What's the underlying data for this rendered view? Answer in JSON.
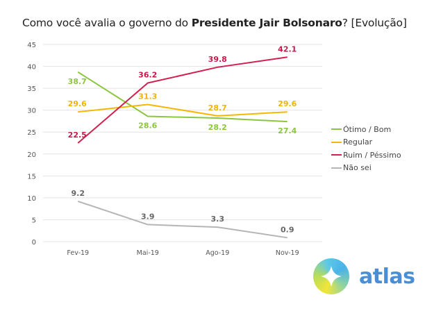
{
  "title": {
    "prefix": "Como você avalia o governo do ",
    "bold": "Presidente Jair Bolsonaro",
    "suffix": "? [Evolução]"
  },
  "logo": {
    "text": "atlas",
    "icon": "atlas-compass-logo-icon"
  },
  "chart_data": {
    "type": "line",
    "title": "Como você avalia o governo do Presidente Jair Bolsonaro? [Evolução]",
    "xlabel": "",
    "ylabel": "",
    "categories": [
      "Fev-19",
      "Mai-19",
      "Ago-19",
      "Nov-19"
    ],
    "ylim": [
      0,
      45
    ],
    "yticks": [
      0,
      5,
      10,
      15,
      20,
      25,
      30,
      35,
      40,
      45
    ],
    "grid": true,
    "legend_position": "right",
    "series": [
      {
        "name": "Ótimo / Bom",
        "color": "#8cc63f",
        "values": [
          38.7,
          28.6,
          28.2,
          27.4
        ],
        "label_pos": [
          "below",
          "below",
          "below",
          "below"
        ]
      },
      {
        "name": "Regular",
        "color": "#f5b800",
        "values": [
          29.6,
          31.3,
          28.7,
          29.6
        ],
        "label_pos": [
          "above",
          "above",
          "above",
          "above"
        ]
      },
      {
        "name": "Ruim / Péssimo",
        "color": "#d21f4f",
        "values": [
          22.5,
          36.2,
          39.8,
          42.1
        ],
        "label_pos": [
          "above",
          "above",
          "above",
          "above"
        ]
      },
      {
        "name": "Não sei",
        "color": "#b5b5b5",
        "values": [
          9.2,
          3.9,
          3.3,
          0.9
        ],
        "label_pos": [
          "above",
          "above",
          "above",
          "above"
        ]
      }
    ],
    "label_colors": [
      "#8cc63f",
      "#f0b400",
      "#c8174a",
      "#666666"
    ]
  }
}
